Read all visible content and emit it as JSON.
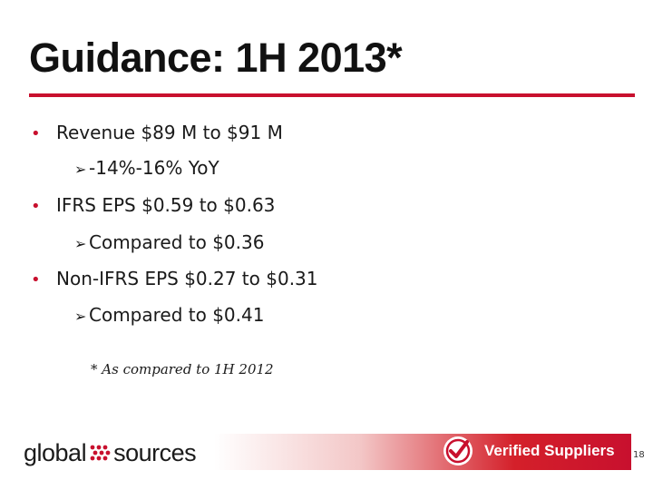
{
  "slide": {
    "title": "Guidance: 1H 2013*",
    "bullets": [
      {
        "text": "Revenue $89 M to $91 M",
        "sub": "-14%-16% YoY"
      },
      {
        "text": "IFRS EPS $0.59 to $0.63",
        "sub": "Compared to $0.36"
      },
      {
        "text": "Non-IFRS EPS $0.27 to $0.31",
        "sub": "Compared to $0.41"
      }
    ],
    "footnote": "*  As compared to 1H 2012",
    "page_number": "18"
  },
  "footer": {
    "logo_left": "global",
    "logo_right": "sources",
    "verified_label": "Verified Suppliers"
  },
  "colors": {
    "accent": "#c8102e",
    "text": "#1a1a1a",
    "verified_text": "#ffffff"
  },
  "icons": {
    "bullet": "round-bullet",
    "sub_bullet": "arrowhead-bullet",
    "logo_mark": "dot-cluster-icon",
    "badge": "checkmark-badge-icon"
  }
}
